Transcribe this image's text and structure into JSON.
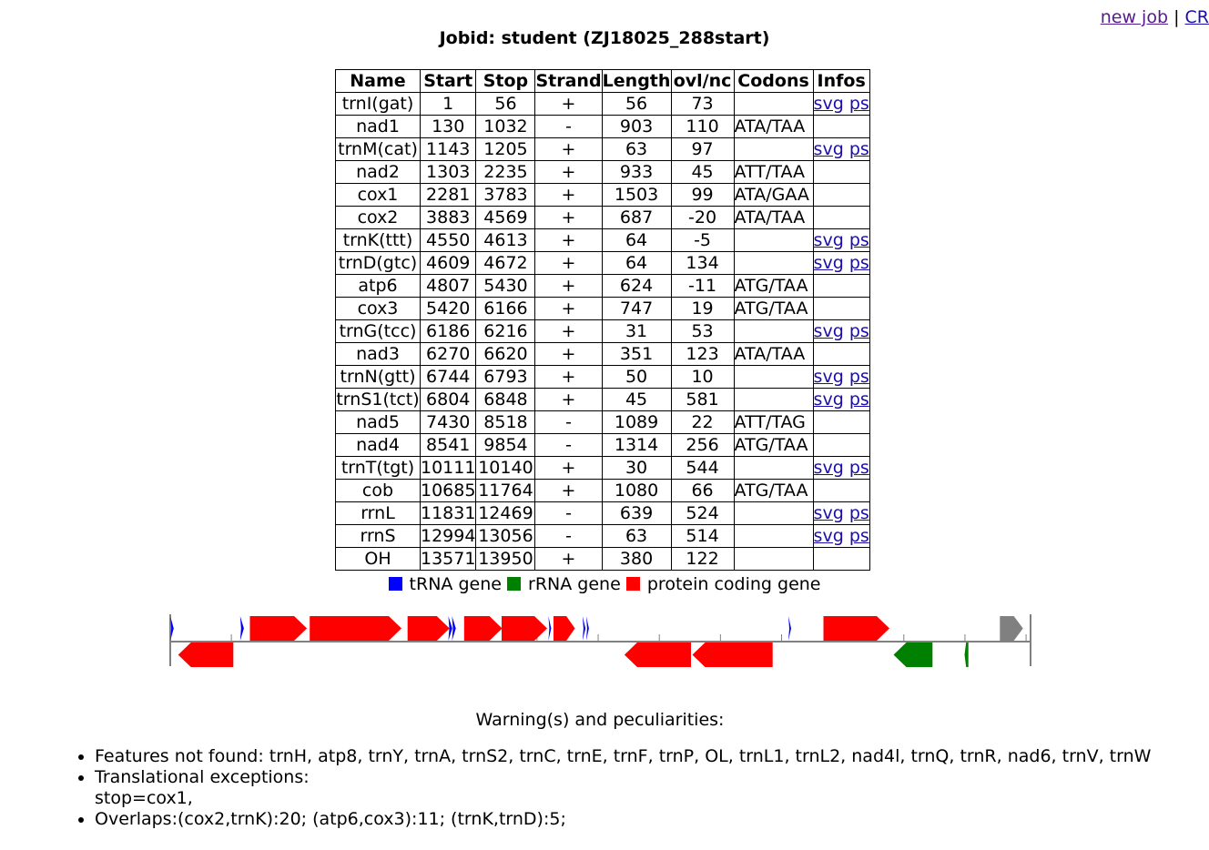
{
  "nav": {
    "new_job": "new job",
    "separator": "|",
    "cr": "CR"
  },
  "title": "Jobid: student (ZJ18025_288start)",
  "columns": [
    "Name",
    "Start",
    "Stop",
    "Strand",
    "Length",
    "ovl/nc",
    "Codons",
    "Infos"
  ],
  "rows": [
    {
      "name": "trnI(gat)",
      "start": "1",
      "stop": "56",
      "strand": "+",
      "length": "56",
      "ovl": "73",
      "codons": "",
      "svg": "svg",
      "ps": "ps"
    },
    {
      "name": "nad1",
      "start": "130",
      "stop": "1032",
      "strand": "-",
      "length": "903",
      "ovl": "110",
      "codons": "ATA/TAA"
    },
    {
      "name": "trnM(cat)",
      "start": "1143",
      "stop": "1205",
      "strand": "+",
      "length": "63",
      "ovl": "97",
      "codons": "",
      "svg": "svg",
      "ps": "ps"
    },
    {
      "name": "nad2",
      "start": "1303",
      "stop": "2235",
      "strand": "+",
      "length": "933",
      "ovl": "45",
      "codons": "ATT/TAA"
    },
    {
      "name": "cox1",
      "start": "2281",
      "stop": "3783",
      "strand": "+",
      "length": "1503",
      "ovl": "99",
      "codons": "ATA/GAA"
    },
    {
      "name": "cox2",
      "start": "3883",
      "stop": "4569",
      "strand": "+",
      "length": "687",
      "ovl": "-20",
      "codons": "ATA/TAA"
    },
    {
      "name": "trnK(ttt)",
      "start": "4550",
      "stop": "4613",
      "strand": "+",
      "length": "64",
      "ovl": "-5",
      "codons": "",
      "svg": "svg",
      "ps": "ps"
    },
    {
      "name": "trnD(gtc)",
      "start": "4609",
      "stop": "4672",
      "strand": "+",
      "length": "64",
      "ovl": "134",
      "codons": "",
      "svg": "svg",
      "ps": "ps"
    },
    {
      "name": "atp6",
      "start": "4807",
      "stop": "5430",
      "strand": "+",
      "length": "624",
      "ovl": "-11",
      "codons": "ATG/TAA"
    },
    {
      "name": "cox3",
      "start": "5420",
      "stop": "6166",
      "strand": "+",
      "length": "747",
      "ovl": "19",
      "codons": "ATG/TAA"
    },
    {
      "name": "trnG(tcc)",
      "start": "6186",
      "stop": "6216",
      "strand": "+",
      "length": "31",
      "ovl": "53",
      "codons": "",
      "svg": "svg",
      "ps": "ps"
    },
    {
      "name": "nad3",
      "start": "6270",
      "stop": "6620",
      "strand": "+",
      "length": "351",
      "ovl": "123",
      "codons": "ATA/TAA"
    },
    {
      "name": "trnN(gtt)",
      "start": "6744",
      "stop": "6793",
      "strand": "+",
      "length": "50",
      "ovl": "10",
      "codons": "",
      "svg": "svg",
      "ps": "ps"
    },
    {
      "name": "trnS1(tct)",
      "start": "6804",
      "stop": "6848",
      "strand": "+",
      "length": "45",
      "ovl": "581",
      "codons": "",
      "svg": "svg",
      "ps": "ps"
    },
    {
      "name": "nad5",
      "start": "7430",
      "stop": "8518",
      "strand": "-",
      "length": "1089",
      "ovl": "22",
      "codons": "ATT/TAG"
    },
    {
      "name": "nad4",
      "start": "8541",
      "stop": "9854",
      "strand": "-",
      "length": "1314",
      "ovl": "256",
      "codons": "ATG/TAA"
    },
    {
      "name": "trnT(tgt)",
      "start": "10111",
      "stop": "10140",
      "strand": "+",
      "length": "30",
      "ovl": "544",
      "codons": "",
      "svg": "svg",
      "ps": "ps"
    },
    {
      "name": "cob",
      "start": "10685",
      "stop": "11764",
      "strand": "+",
      "length": "1080",
      "ovl": "66",
      "codons": "ATG/TAA"
    },
    {
      "name": "rrnL",
      "start": "11831",
      "stop": "12469",
      "strand": "-",
      "length": "639",
      "ovl": "524",
      "codons": "",
      "svg": "svg",
      "ps": "ps"
    },
    {
      "name": "rrnS",
      "start": "12994",
      "stop": "13056",
      "strand": "-",
      "length": "63",
      "ovl": "514",
      "codons": "",
      "svg": "svg",
      "ps": "ps"
    },
    {
      "name": "OH",
      "start": "13571",
      "stop": "13950",
      "strand": "+",
      "length": "380",
      "ovl": "122",
      "codons": ""
    }
  ],
  "legend": {
    "trna": "tRNA gene",
    "rrna": "rRNA gene",
    "protein": "protein coding gene"
  },
  "colors": {
    "trna": "#0000ff",
    "rrna": "#008000",
    "protein": "#ff0000",
    "other": "#808080",
    "link": "#1a0dab",
    "visited": "#551a8b"
  },
  "map": {
    "genome_length": 14073,
    "genes": [
      {
        "name": "trnI(gat)",
        "start": 1,
        "stop": 56,
        "strand": "+",
        "type": "trna"
      },
      {
        "name": "nad1",
        "start": 130,
        "stop": 1032,
        "strand": "-",
        "type": "protein"
      },
      {
        "name": "trnM(cat)",
        "start": 1143,
        "stop": 1205,
        "strand": "+",
        "type": "trna"
      },
      {
        "name": "nad2",
        "start": 1303,
        "stop": 2235,
        "strand": "+",
        "type": "protein"
      },
      {
        "name": "cox1",
        "start": 2281,
        "stop": 3783,
        "strand": "+",
        "type": "protein"
      },
      {
        "name": "cox2",
        "start": 3883,
        "stop": 4569,
        "strand": "+",
        "type": "protein"
      },
      {
        "name": "trnK(ttt)",
        "start": 4550,
        "stop": 4613,
        "strand": "+",
        "type": "trna"
      },
      {
        "name": "trnD(gtc)",
        "start": 4609,
        "stop": 4672,
        "strand": "+",
        "type": "trna"
      },
      {
        "name": "atp6",
        "start": 4807,
        "stop": 5430,
        "strand": "+",
        "type": "protein"
      },
      {
        "name": "cox3",
        "start": 5420,
        "stop": 6166,
        "strand": "+",
        "type": "protein"
      },
      {
        "name": "trnG(tcc)",
        "start": 6186,
        "stop": 6216,
        "strand": "+",
        "type": "trna"
      },
      {
        "name": "nad3",
        "start": 6270,
        "stop": 6620,
        "strand": "+",
        "type": "protein"
      },
      {
        "name": "trnN(gtt)",
        "start": 6744,
        "stop": 6793,
        "strand": "+",
        "type": "trna"
      },
      {
        "name": "trnS1(tct)",
        "start": 6804,
        "stop": 6848,
        "strand": "+",
        "type": "trna"
      },
      {
        "name": "nad5",
        "start": 7430,
        "stop": 8518,
        "strand": "-",
        "type": "protein"
      },
      {
        "name": "nad4",
        "start": 8541,
        "stop": 9854,
        "strand": "-",
        "type": "protein"
      },
      {
        "name": "trnT(tgt)",
        "start": 10111,
        "stop": 10140,
        "strand": "+",
        "type": "trna"
      },
      {
        "name": "cob",
        "start": 10685,
        "stop": 11764,
        "strand": "+",
        "type": "protein"
      },
      {
        "name": "rrnL",
        "start": 11831,
        "stop": 12469,
        "strand": "-",
        "type": "rrna"
      },
      {
        "name": "rrnS",
        "start": 12994,
        "stop": 13056,
        "strand": "-",
        "type": "rrna"
      },
      {
        "name": "OH",
        "start": 13571,
        "stop": 13950,
        "strand": "+",
        "type": "other"
      }
    ]
  },
  "warnings": {
    "title": "Warning(s) and peculiarities:",
    "not_found": "Features not found: trnH, atp8, trnY, trnA, trnS2, trnC, trnE, trnF, trnP, OL, trnL1, trnL2, nad4l, trnQ, trnR, nad6, trnV, trnW",
    "exceptions_label": "Translational exceptions:",
    "exceptions_value": "stop=cox1,",
    "overlaps": "Overlaps:(cox2,trnK):20; (atp6,cox3):11; (trnK,trnD):5;"
  }
}
